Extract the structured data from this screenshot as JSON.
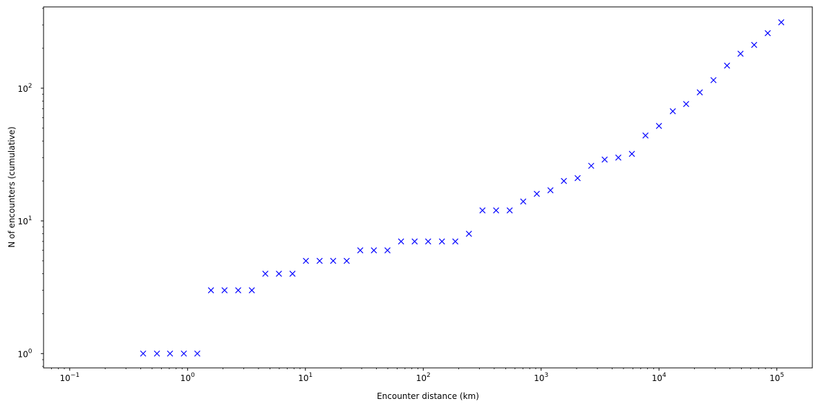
{
  "chart_data": {
    "type": "scatter",
    "xlabel": "Encounter distance (km)",
    "ylabel": "N of encounters (cumulative)",
    "xscale": "log",
    "yscale": "log",
    "xlim": [
      0.06,
      200000
    ],
    "ylim": [
      0.78,
      410
    ],
    "grid": false,
    "marker": "x",
    "marker_color": "#0000ff",
    "x_major_ticks": [
      {
        "value": 0.1,
        "base": "10",
        "exp": "−1"
      },
      {
        "value": 1,
        "base": "10",
        "exp": "0"
      },
      {
        "value": 10,
        "base": "10",
        "exp": "1"
      },
      {
        "value": 100,
        "base": "10",
        "exp": "2"
      },
      {
        "value": 1000,
        "base": "10",
        "exp": "3"
      },
      {
        "value": 10000,
        "base": "10",
        "exp": "4"
      },
      {
        "value": 100000,
        "base": "10",
        "exp": "5"
      }
    ],
    "y_major_ticks": [
      {
        "value": 1,
        "base": "10",
        "exp": "0"
      },
      {
        "value": 10,
        "base": "10",
        "exp": "1"
      },
      {
        "value": 100,
        "base": "10",
        "exp": "2"
      }
    ],
    "points": [
      [
        0.42,
        1
      ],
      [
        0.55,
        1
      ],
      [
        0.71,
        1
      ],
      [
        0.93,
        1
      ],
      [
        1.21,
        1
      ],
      [
        1.58,
        3
      ],
      [
        2.06,
        3
      ],
      [
        2.69,
        3
      ],
      [
        3.51,
        3
      ],
      [
        4.57,
        4
      ],
      [
        5.96,
        4
      ],
      [
        7.77,
        4
      ],
      [
        10.1,
        5
      ],
      [
        13.2,
        5
      ],
      [
        17.2,
        5
      ],
      [
        22.4,
        5
      ],
      [
        29.2,
        6
      ],
      [
        38.1,
        6
      ],
      [
        49.7,
        6
      ],
      [
        64.8,
        7
      ],
      [
        84.5,
        7
      ],
      [
        110,
        7
      ],
      [
        144,
        7
      ],
      [
        187,
        7
      ],
      [
        244,
        8
      ],
      [
        318,
        12
      ],
      [
        415,
        12
      ],
      [
        541,
        12
      ],
      [
        705,
        14
      ],
      [
        919,
        16
      ],
      [
        1200,
        17
      ],
      [
        1560,
        20
      ],
      [
        2040,
        21
      ],
      [
        2660,
        26
      ],
      [
        3460,
        29
      ],
      [
        4520,
        30
      ],
      [
        5890,
        32
      ],
      [
        7680,
        44
      ],
      [
        10000,
        52
      ],
      [
        13100,
        67
      ],
      [
        17000,
        76
      ],
      [
        22200,
        93
      ],
      [
        29000,
        115
      ],
      [
        37800,
        148
      ],
      [
        49200,
        182
      ],
      [
        64200,
        212
      ],
      [
        83700,
        260
      ],
      [
        109000,
        314
      ]
    ]
  }
}
